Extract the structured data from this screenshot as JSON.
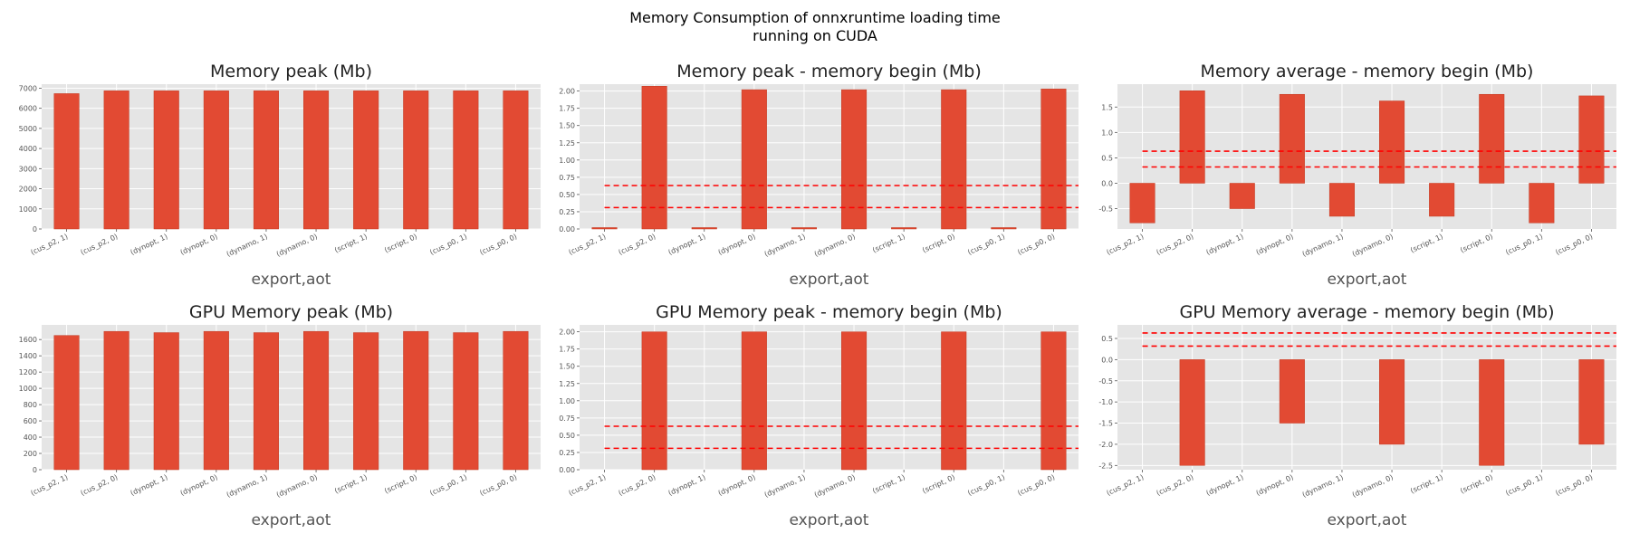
{
  "suptitle": [
    "Memory Consumption of onnxruntime loading time",
    "running on CUDA"
  ],
  "colors": {
    "bar": "#e24a33",
    "axes_bg": "#e5e5e5",
    "grid": "#ffffff",
    "ref_line": "#ff0000"
  },
  "chart_data": [
    {
      "type": "bar",
      "title": "Memory peak (Mb)",
      "xlabel": "export,aot",
      "categories": [
        "(cus_p2, 1)",
        "(cus_p2, 0)",
        "(dynopt, 1)",
        "(dynopt, 0)",
        "(dynamo, 1)",
        "(dynamo, 0)",
        "(script, 1)",
        "(script, 0)",
        "(cus_p0, 1)",
        "(cus_p0, 0)"
      ],
      "values": [
        6730,
        6870,
        6870,
        6870,
        6870,
        6870,
        6870,
        6870,
        6870,
        6870
      ],
      "ylim": [
        0,
        7200
      ],
      "yticks": [
        0,
        1000,
        2000,
        3000,
        4000,
        5000,
        6000,
        7000
      ],
      "ref_lines": []
    },
    {
      "type": "bar",
      "title": "Memory peak - memory begin (Mb)",
      "xlabel": "export,aot",
      "categories": [
        "(cus_p2, 1)",
        "(cus_p2, 0)",
        "(dynopt, 1)",
        "(dynopt, 0)",
        "(dynamo, 1)",
        "(dynamo, 0)",
        "(script, 1)",
        "(script, 0)",
        "(cus_p0, 1)",
        "(cus_p0, 0)"
      ],
      "values": [
        0.02,
        2.07,
        0.02,
        2.02,
        0.02,
        2.02,
        0.02,
        2.02,
        0.02,
        2.03
      ],
      "ylim": [
        0,
        2.1
      ],
      "yticks": [
        0.0,
        0.25,
        0.5,
        0.75,
        1.0,
        1.25,
        1.5,
        1.75,
        2.0
      ],
      "yticklabels": [
        "0.00",
        "0.25",
        "0.50",
        "0.75",
        "1.00",
        "1.25",
        "1.50",
        "1.75",
        "2.00"
      ],
      "ref_lines": [
        0.63,
        0.31
      ]
    },
    {
      "type": "bar",
      "title": "Memory average - memory begin (Mb)",
      "xlabel": "export,aot",
      "categories": [
        "(cus_p2, 1)",
        "(cus_p2, 0)",
        "(dynopt, 1)",
        "(dynopt, 0)",
        "(dynamo, 1)",
        "(dynamo, 0)",
        "(script, 1)",
        "(script, 0)",
        "(cus_p0, 1)",
        "(cus_p0, 0)"
      ],
      "values": [
        -0.78,
        1.82,
        -0.5,
        1.75,
        -0.65,
        1.62,
        -0.65,
        1.75,
        -0.78,
        1.72
      ],
      "ylim": [
        -0.9,
        1.95
      ],
      "yticks": [
        -0.5,
        0.0,
        0.5,
        1.0,
        1.5
      ],
      "yticklabels": [
        "-0.5",
        "0.0",
        "0.5",
        "1.0",
        "1.5"
      ],
      "ref_lines": [
        0.63,
        0.32
      ]
    },
    {
      "type": "bar",
      "title": "GPU Memory peak (Mb)",
      "xlabel": "export,aot",
      "categories": [
        "(cus_p2, 1)",
        "(cus_p2, 0)",
        "(dynopt, 1)",
        "(dynopt, 0)",
        "(dynamo, 1)",
        "(dynamo, 0)",
        "(script, 1)",
        "(script, 0)",
        "(cus_p0, 1)",
        "(cus_p0, 0)"
      ],
      "values": [
        1650,
        1700,
        1685,
        1700,
        1685,
        1700,
        1685,
        1700,
        1685,
        1700
      ],
      "ylim": [
        0,
        1780
      ],
      "yticks": [
        0,
        200,
        400,
        600,
        800,
        1000,
        1200,
        1400,
        1600
      ],
      "ref_lines": []
    },
    {
      "type": "bar",
      "title": "GPU Memory peak - memory begin (Mb)",
      "xlabel": "export,aot",
      "categories": [
        "(cus_p2, 1)",
        "(cus_p2, 0)",
        "(dynopt, 1)",
        "(dynopt, 0)",
        "(dynamo, 1)",
        "(dynamo, 0)",
        "(script, 1)",
        "(script, 0)",
        "(cus_p0, 1)",
        "(cus_p0, 0)"
      ],
      "values": [
        0,
        2.0,
        0,
        2.0,
        0,
        2.0,
        0,
        2.0,
        0,
        2.0
      ],
      "ylim": [
        0,
        2.1
      ],
      "yticks": [
        0.0,
        0.25,
        0.5,
        0.75,
        1.0,
        1.25,
        1.5,
        1.75,
        2.0
      ],
      "yticklabels": [
        "0.00",
        "0.25",
        "0.50",
        "0.75",
        "1.00",
        "1.25",
        "1.50",
        "1.75",
        "2.00"
      ],
      "ref_lines": [
        0.63,
        0.31
      ]
    },
    {
      "type": "bar",
      "title": "GPU Memory average - memory begin (Mb)",
      "xlabel": "export,aot",
      "categories": [
        "(cus_p2, 1)",
        "(cus_p2, 0)",
        "(dynopt, 1)",
        "(dynopt, 0)",
        "(dynamo, 1)",
        "(dynamo, 0)",
        "(script, 1)",
        "(script, 0)",
        "(cus_p0, 1)",
        "(cus_p0, 0)"
      ],
      "values": [
        0,
        -2.5,
        0,
        -1.5,
        0,
        -2.0,
        0,
        -2.5,
        0,
        -2.0
      ],
      "ylim": [
        -2.6,
        0.82
      ],
      "yticks": [
        -2.5,
        -2.0,
        -1.5,
        -1.0,
        -0.5,
        0.0,
        0.5
      ],
      "yticklabels": [
        "-2.5",
        "-2.0",
        "-1.5",
        "-1.0",
        "-0.5",
        "0.0",
        "0.5"
      ],
      "ref_lines": [
        0.63,
        0.32
      ]
    }
  ]
}
